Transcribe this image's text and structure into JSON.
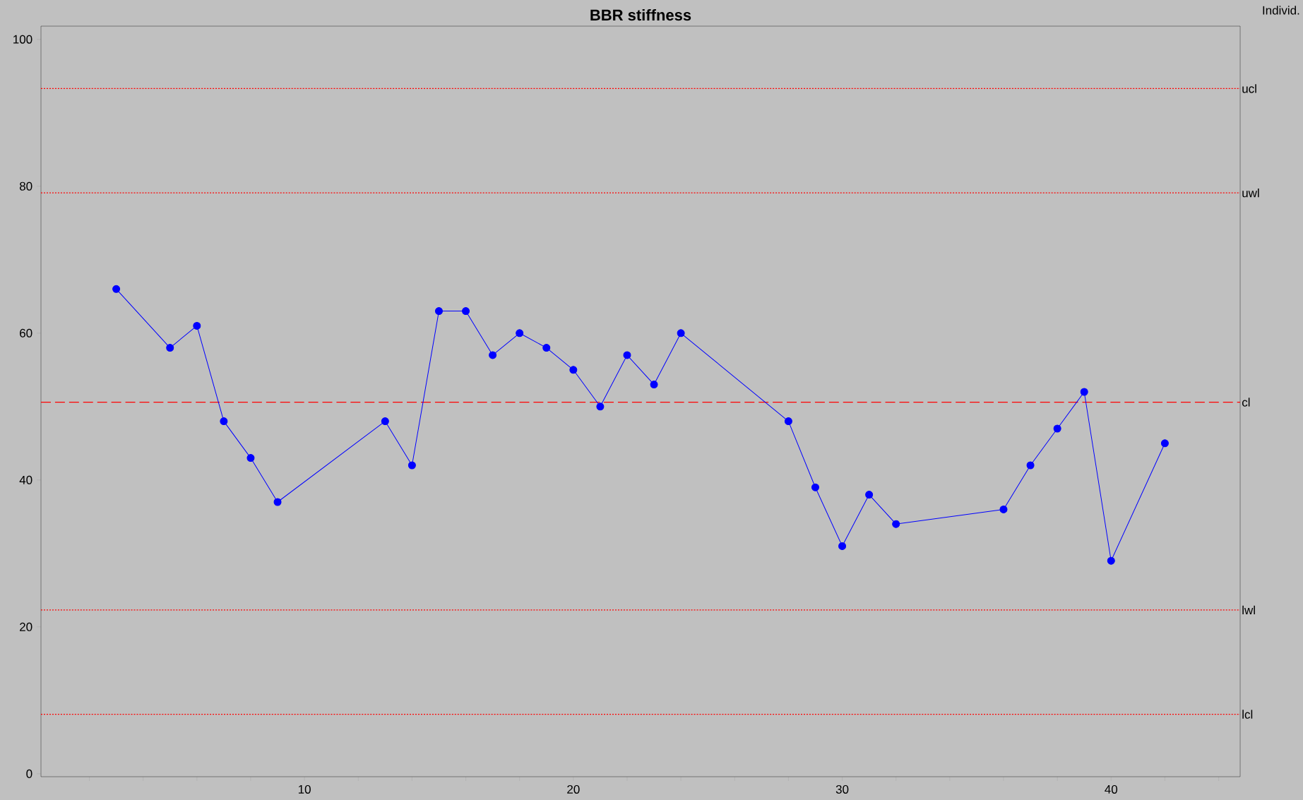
{
  "chart_data": {
    "type": "line",
    "title": "BBR stiffness",
    "annotations": [
      "Individ."
    ],
    "x": [
      3,
      5,
      6,
      7,
      8,
      9,
      13,
      14,
      15,
      16,
      17,
      18,
      19,
      20,
      21,
      22,
      23,
      24,
      28,
      29,
      30,
      31,
      32,
      36,
      37,
      38,
      39,
      40,
      42
    ],
    "values": [
      66,
      58,
      61,
      48,
      43,
      37,
      48,
      42,
      63,
      63,
      57,
      60,
      58,
      55,
      50,
      57,
      53,
      60,
      48,
      39,
      31,
      38,
      34,
      36,
      42,
      47,
      52,
      29,
      45
    ],
    "color": "#0000ff",
    "marker": "circle",
    "line_style": "solid",
    "xlim": [
      0.2,
      44.8
    ],
    "ylim": [
      -0.4,
      101.8
    ],
    "xticks": [
      {
        "value": 2,
        "label": null
      },
      {
        "value": 4,
        "label": null
      },
      {
        "value": 6,
        "label": null
      },
      {
        "value": 8,
        "label": null
      },
      10,
      {
        "value": 12,
        "label": null
      },
      {
        "value": 14,
        "label": null
      },
      {
        "value": 16,
        "label": null
      },
      {
        "value": 18,
        "label": null
      },
      20,
      {
        "value": 22,
        "label": null
      },
      {
        "value": 24,
        "label": null
      },
      {
        "value": 26,
        "label": null
      },
      {
        "value": 28,
        "label": null
      },
      30,
      {
        "value": 32,
        "label": null
      },
      {
        "value": 34,
        "label": null
      },
      {
        "value": 36,
        "label": null
      },
      {
        "value": 38,
        "label": null
      },
      40,
      {
        "value": 42,
        "label": null
      },
      {
        "value": 44,
        "label": null
      }
    ],
    "yticks": [
      0,
      20,
      40,
      60,
      80,
      100
    ],
    "ref_lines": [
      {
        "axis": "y",
        "value": 93.3,
        "label": "ucl",
        "color": "#ff0000",
        "line_style": "dotted"
      },
      {
        "axis": "y",
        "value": 79.1,
        "label": "uwl",
        "color": "#ff0000",
        "line_style": "dotted"
      },
      {
        "axis": "y",
        "value": 50.6,
        "label": "cl",
        "color": "#ff0000",
        "line_style": "dashed"
      },
      {
        "axis": "y",
        "value": 22.3,
        "label": "lwl",
        "color": "#ff0000",
        "line_style": "dotted"
      },
      {
        "axis": "y",
        "value": 8.1,
        "label": "lcl",
        "color": "#ff0000",
        "line_style": "dotted"
      }
    ]
  }
}
